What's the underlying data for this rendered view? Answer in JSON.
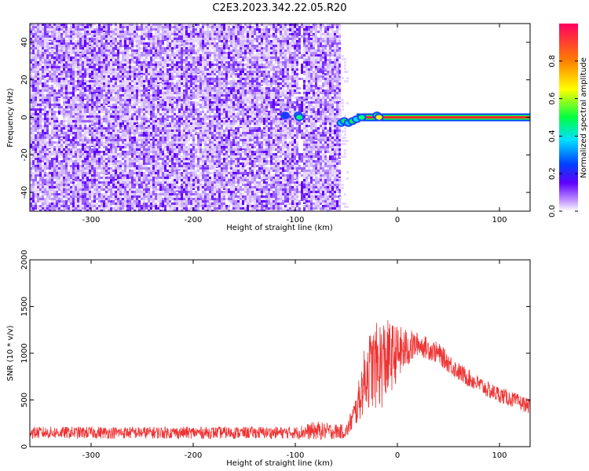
{
  "title": "C2E3.2023.342.22.05.R20",
  "chart_data": [
    {
      "type": "heatmap",
      "xlabel": "Height of straight line (km)",
      "ylabel": "Frequency (Hz)",
      "xlim": [
        -360,
        130
      ],
      "ylim": [
        -50,
        50
      ],
      "xticks": [
        -300,
        -200,
        -100,
        0,
        100
      ],
      "yticks": [
        -40,
        -20,
        0,
        20,
        40
      ],
      "colorbar": {
        "label": "Normalized spectral amplitude",
        "range": [
          0.0,
          1.0
        ],
        "ticks": [
          0.0,
          0.2,
          0.4,
          0.6,
          0.8
        ],
        "tick_labels": [
          "0.0",
          "0.2",
          "0.4",
          "0.6",
          "0.8"
        ],
        "colormap": [
          "#ffffff",
          "#c8a0ff",
          "#6000ff",
          "#0040ff",
          "#00e0ff",
          "#00ff40",
          "#ffff00",
          "#ff8000",
          "#ff0060"
        ]
      },
      "features": {
        "noise_region_x": [
          -360,
          -57
        ],
        "noise_gap_x": [
          -97,
          -93
        ],
        "signal_center_freq": 0,
        "signal_start_x": -100,
        "signal_strong_x": [
          -40,
          130
        ]
      }
    },
    {
      "type": "line",
      "xlabel": "Height of straight line (km)",
      "ylabel": "SNR (10 * v/v)",
      "xlim": [
        -360,
        130
      ],
      "ylim": [
        0,
        2000
      ],
      "xticks": [
        -300,
        -200,
        -100,
        0,
        100
      ],
      "yticks": [
        0,
        500,
        1000,
        1500,
        2000
      ],
      "line_color": "#ee3333",
      "envelope": [
        {
          "x": -360,
          "base": 150,
          "spread": 130
        },
        {
          "x": -100,
          "base": 150,
          "spread": 130
        },
        {
          "x": -80,
          "base": 170,
          "spread": 200
        },
        {
          "x": -50,
          "base": 160,
          "spread": 150
        },
        {
          "x": -40,
          "base": 400,
          "spread": 350
        },
        {
          "x": -30,
          "base": 800,
          "spread": 800
        },
        {
          "x": -15,
          "base": 900,
          "spread": 1000
        },
        {
          "x": 0,
          "base": 1000,
          "spread": 600
        },
        {
          "x": 20,
          "base": 1100,
          "spread": 250
        },
        {
          "x": 40,
          "base": 1000,
          "spread": 230
        },
        {
          "x": 60,
          "base": 800,
          "spread": 200
        },
        {
          "x": 90,
          "base": 600,
          "spread": 180
        },
        {
          "x": 130,
          "base": 430,
          "spread": 160
        }
      ]
    }
  ]
}
